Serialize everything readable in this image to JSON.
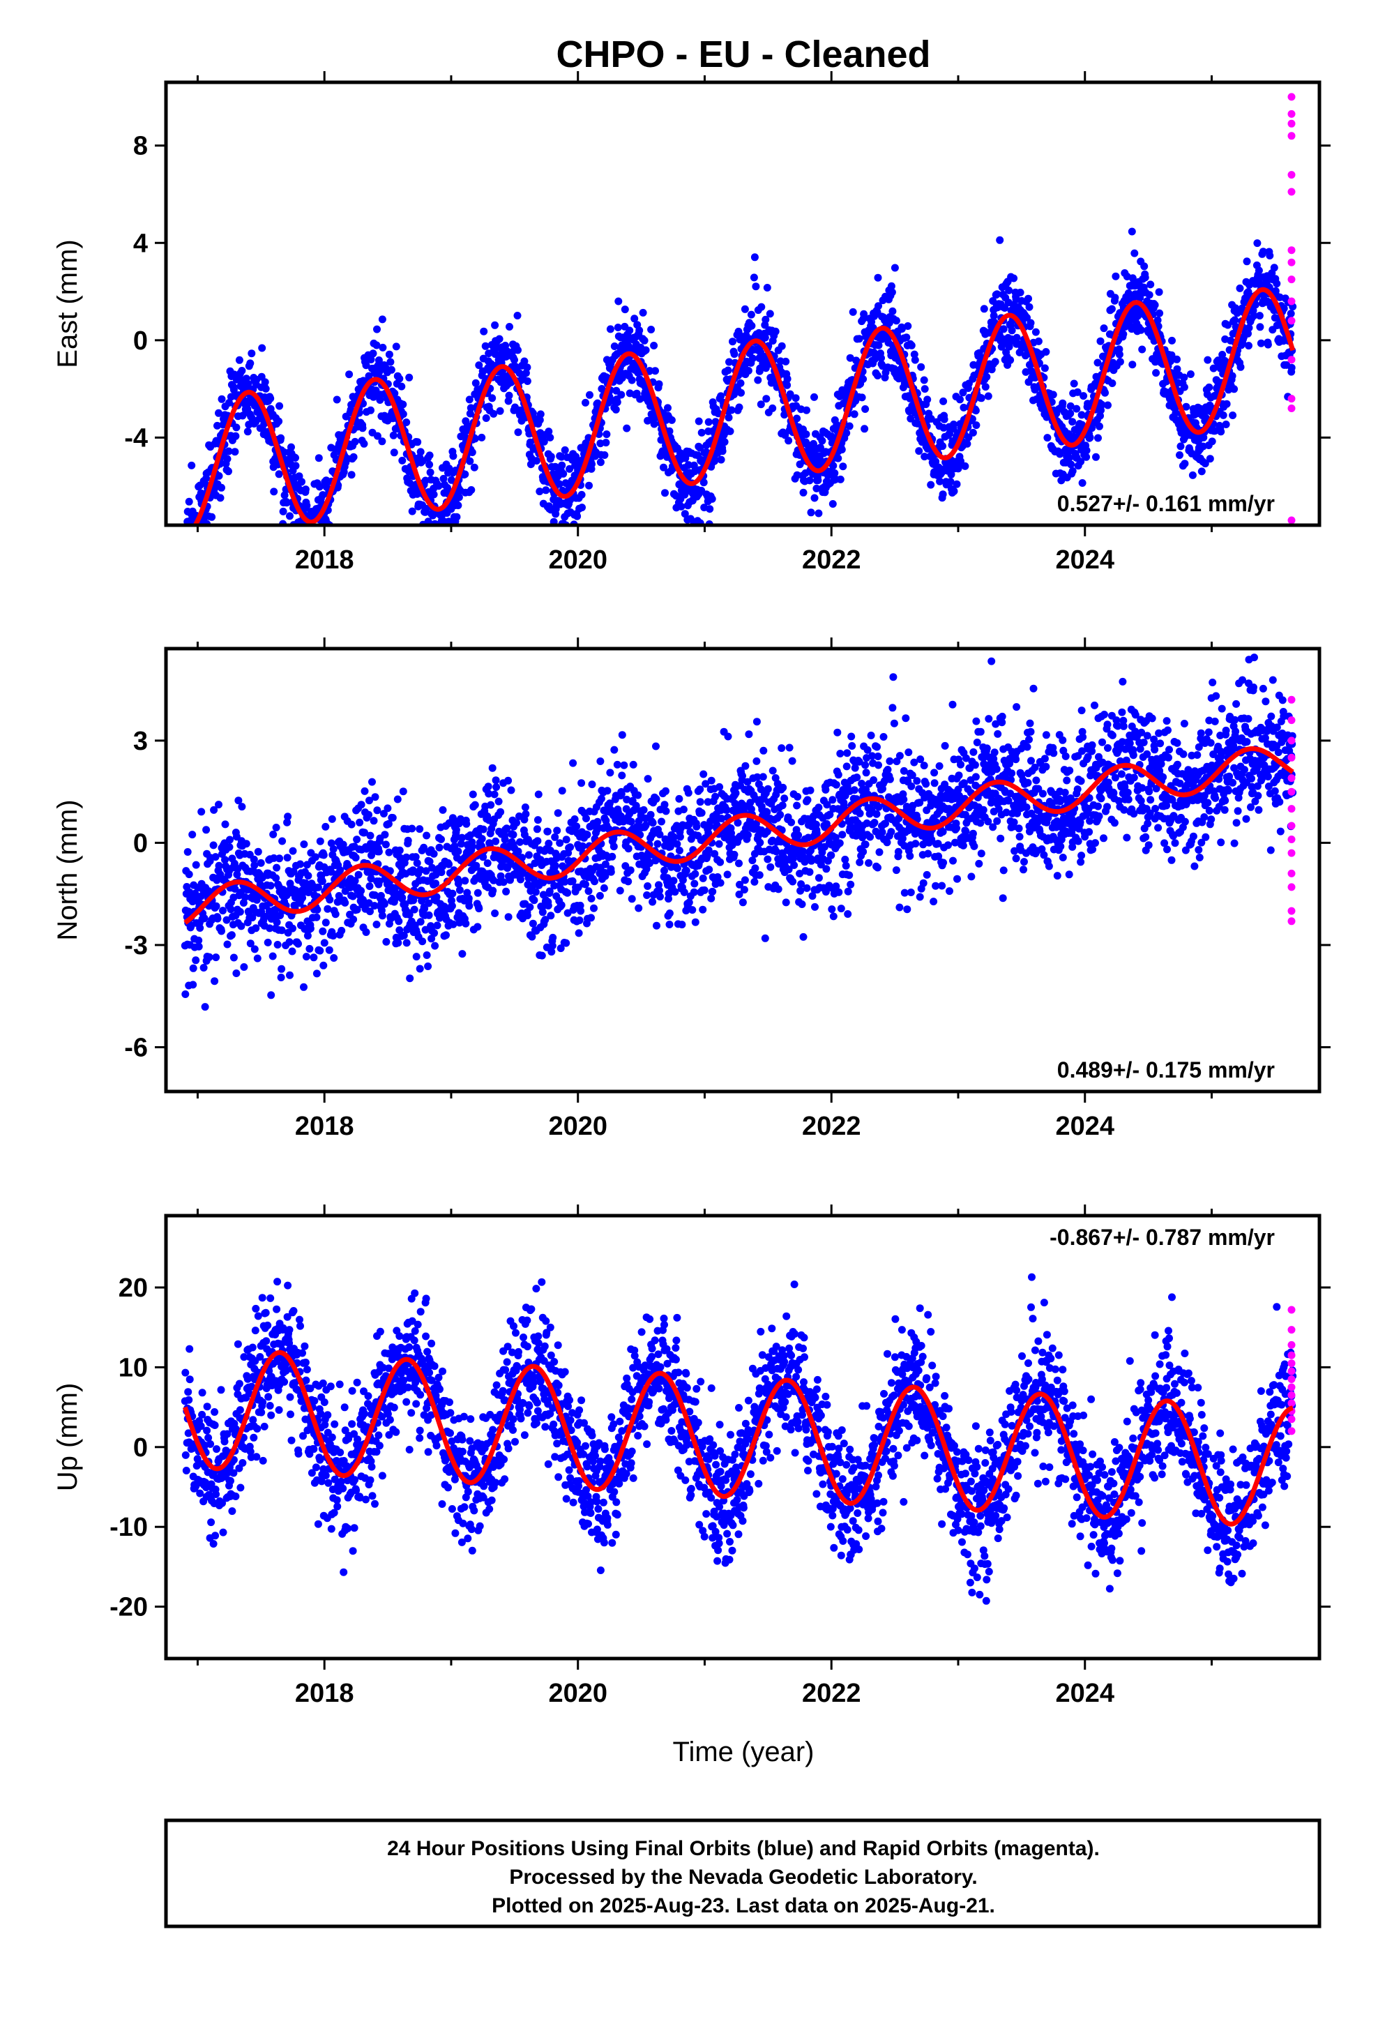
{
  "title": "CHPO  - EU - Cleaned",
  "xlabel": "Time (year)",
  "footer": {
    "line1": "24 Hour Positions Using Final Orbits (blue) and Rapid Orbits (magenta).",
    "line2": "Processed by the Nevada Geodetic Laboratory.",
    "line3": "Plotted on 2025-Aug-23. Last data on 2025-Aug-21."
  },
  "colors": {
    "final": "#0000ff",
    "rapid": "#ff00ff",
    "model": "#ff0000"
  },
  "chart_data": [
    {
      "type": "scatter",
      "panel": "east",
      "ylabel": "East (mm)",
      "rate": "0.527+/- 0.161 mm/yr",
      "xlim": [
        2016.75,
        2025.85
      ],
      "ylim": [
        -7.6,
        10.6
      ],
      "xticks": [
        2018,
        2020,
        2022,
        2024
      ],
      "yticks": [
        -4,
        0,
        4,
        8
      ],
      "data_start": 2016.9,
      "data_end": 2025.64,
      "rapid_start": 2025.55,
      "model": {
        "trend_start": -5.2,
        "rate": 0.527,
        "amplitude": 2.8,
        "peak_phase": 0.4,
        "scatter": 0.9
      },
      "rapid_values": [
        10.0,
        9.3,
        8.9,
        8.4,
        6.8,
        6.1,
        3.7,
        3.2,
        2.5,
        1.6,
        0.8,
        -0.8,
        -2.4,
        -2.8,
        -7.4
      ]
    },
    {
      "type": "scatter",
      "panel": "north",
      "ylabel": "North (mm)",
      "rate": "0.489+/- 0.175 mm/yr",
      "xlim": [
        2016.75,
        2025.85
      ],
      "ylim": [
        -7.3,
        5.7
      ],
      "xticks": [
        2018,
        2020,
        2022,
        2024
      ],
      "yticks": [
        -6,
        -3,
        0,
        3
      ],
      "data_start": 2016.9,
      "data_end": 2025.64,
      "rapid_start": 2025.55,
      "model": {
        "trend_start": -1.9,
        "rate": 0.489,
        "amplitude": 0.55,
        "peak_phase": 0.3,
        "scatter": 1.0
      },
      "rapid_values": [
        4.2,
        3.6,
        3.0,
        2.5,
        1.9,
        1.5,
        1.0,
        0.5,
        0.1,
        -0.3,
        -0.9,
        -1.3,
        -2.0,
        -2.3
      ]
    },
    {
      "type": "scatter",
      "panel": "up",
      "ylabel": "Up (mm)",
      "rate": "-0.867+/- 0.787 mm/yr",
      "xlim": [
        2016.75,
        2025.85
      ],
      "ylim": [
        -26.5,
        29.0
      ],
      "xticks": [
        2018,
        2020,
        2022,
        2024
      ],
      "yticks": [
        -20,
        -10,
        0,
        10,
        20
      ],
      "data_start": 2016.9,
      "data_end": 2025.64,
      "rapid_start": 2025.55,
      "model": {
        "trend_start": 5.0,
        "rate": -0.867,
        "amplitude": 7.5,
        "peak_phase": 0.65,
        "scatter": 4.0
      },
      "rapid_values": [
        17.2,
        14.7,
        12.8,
        11.5,
        10.5,
        9.5,
        8.5,
        7.5,
        6.5,
        5.5,
        4.5,
        3.5,
        2.0
      ]
    }
  ]
}
